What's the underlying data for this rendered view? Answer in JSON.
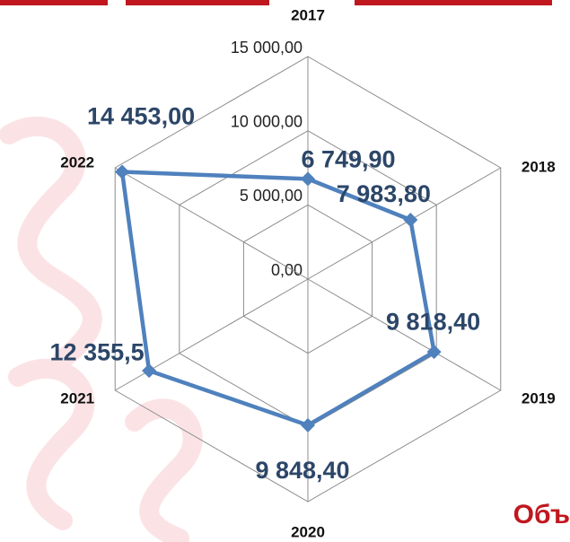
{
  "chart_data": {
    "type": "radar",
    "categories": [
      "2017",
      "2018",
      "2019",
      "2020",
      "2021",
      "2022"
    ],
    "values": [
      6749.9,
      7983.8,
      9818.4,
      9848.4,
      12355.5,
      14453.0
    ],
    "value_labels": [
      "6 749,90",
      "7 983,80",
      "9 818,40",
      "9 848,40",
      "12 355,5",
      "14 453,00"
    ],
    "color": "#4f81bd",
    "ylim": [
      0,
      15000
    ],
    "yticks": [
      {
        "value": 0,
        "label": "0,00"
      },
      {
        "value": 5000,
        "label": "5 000,00"
      },
      {
        "value": 10000,
        "label": "10 000,00"
      },
      {
        "value": 15000,
        "label": "15 000,00"
      }
    ],
    "grid": true,
    "annotation": "Объ"
  }
}
